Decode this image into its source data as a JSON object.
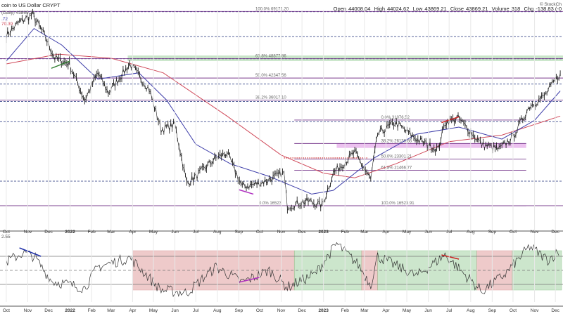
{
  "header": {
    "title": "coin to US Dollar  CRYPT",
    "open_label": "Open",
    "open": "44008.04",
    "high_label": "High",
    "high": "44024.62",
    "low_label": "Low",
    "low": "43869.21",
    "close_label": "Close",
    "close": "43869.21",
    "volume_label": "Volume",
    "volume": "318",
    "chg_label": "Chg",
    "chg": "-138.83 (-0"
  },
  "legend": {
    "price_tag": "(Daily) 43869.21",
    "value_a": ".72",
    "value_b": "70.39"
  },
  "watermark": "© StockCh",
  "rsi_left_label": "2.55",
  "chart_data": {
    "type": "line",
    "title": "Bitcoin to US Dollar CRYPT (Daily)",
    "y_range": [
      14000,
      70000
    ],
    "x_ticks": [
      "Oct",
      "Nov",
      "Dec",
      "2022",
      "Feb",
      "Mar",
      "Apr",
      "May",
      "Jun",
      "Jul",
      "Aug",
      "Sep",
      "Oct",
      "Nov",
      "Dec",
      "2023",
      "Feb",
      "Mar",
      "Apr",
      "May",
      "Jun",
      "Jul",
      "Aug",
      "Sep",
      "Oct",
      "Nov",
      "Dec"
    ],
    "price": [
      {
        "d": "2021-10-01",
        "v": 58000
      },
      {
        "d": "2021-10-20",
        "v": 64000
      },
      {
        "d": "2021-11-08",
        "v": 67500
      },
      {
        "d": "2021-11-25",
        "v": 58000
      },
      {
        "d": "2021-12-10",
        "v": 49000
      },
      {
        "d": "2021-12-31",
        "v": 47000
      },
      {
        "d": "2022-01-22",
        "v": 36000
      },
      {
        "d": "2022-02-10",
        "v": 44000
      },
      {
        "d": "2022-02-25",
        "v": 38000
      },
      {
        "d": "2022-03-28",
        "v": 47000
      },
      {
        "d": "2022-04-25",
        "v": 39000
      },
      {
        "d": "2022-05-12",
        "v": 29000
      },
      {
        "d": "2022-06-01",
        "v": 30000
      },
      {
        "d": "2022-06-18",
        "v": 19500
      },
      {
        "d": "2022-07-01",
        "v": 20500
      },
      {
        "d": "2022-07-30",
        "v": 23500
      },
      {
        "d": "2022-08-15",
        "v": 24400
      },
      {
        "d": "2022-09-06",
        "v": 19000
      },
      {
        "d": "2022-10-01",
        "v": 19500
      },
      {
        "d": "2022-11-05",
        "v": 21000
      },
      {
        "d": "2022-11-10",
        "v": 16500
      },
      {
        "d": "2022-12-10",
        "v": 17100
      },
      {
        "d": "2022-12-30",
        "v": 16550
      },
      {
        "d": "2023-01-15",
        "v": 21000
      },
      {
        "d": "2023-02-15",
        "v": 24500
      },
      {
        "d": "2023-03-10",
        "v": 20000
      },
      {
        "d": "2023-03-20",
        "v": 28000
      },
      {
        "d": "2023-04-14",
        "v": 30500
      },
      {
        "d": "2023-05-15",
        "v": 27000
      },
      {
        "d": "2023-06-15",
        "v": 25000
      },
      {
        "d": "2023-06-25",
        "v": 30500
      },
      {
        "d": "2023-07-14",
        "v": 31500
      },
      {
        "d": "2023-08-17",
        "v": 26000
      },
      {
        "d": "2023-09-11",
        "v": 25000
      },
      {
        "d": "2023-10-01",
        "v": 27500
      },
      {
        "d": "2023-10-25",
        "v": 34500
      },
      {
        "d": "2023-11-15",
        "v": 37000
      },
      {
        "d": "2023-12-08",
        "v": 43869
      }
    ],
    "ma_short": [
      {
        "d": "2021-10-01",
        "v": 48000
      },
      {
        "d": "2021-11-10",
        "v": 61000
      },
      {
        "d": "2021-12-20",
        "v": 54000
      },
      {
        "d": "2022-02-10",
        "v": 42000
      },
      {
        "d": "2022-04-10",
        "v": 44000
      },
      {
        "d": "2022-05-20",
        "v": 36000
      },
      {
        "d": "2022-07-01",
        "v": 26000
      },
      {
        "d": "2022-08-20",
        "v": 22500
      },
      {
        "d": "2022-10-15",
        "v": 20500
      },
      {
        "d": "2022-12-15",
        "v": 18000
      },
      {
        "d": "2023-01-15",
        "v": 18500
      },
      {
        "d": "2023-03-15",
        "v": 23500
      },
      {
        "d": "2023-05-15",
        "v": 28000
      },
      {
        "d": "2023-07-15",
        "v": 29500
      },
      {
        "d": "2023-09-15",
        "v": 27000
      },
      {
        "d": "2023-11-01",
        "v": 31000
      },
      {
        "d": "2023-12-08",
        "v": 38500
      }
    ],
    "ma_long": [
      {
        "d": "2021-10-01",
        "v": 47000
      },
      {
        "d": "2021-12-15",
        "v": 50500
      },
      {
        "d": "2022-03-01",
        "v": 49000
      },
      {
        "d": "2022-05-15",
        "v": 44000
      },
      {
        "d": "2022-08-15",
        "v": 32000
      },
      {
        "d": "2022-11-01",
        "v": 24000
      },
      {
        "d": "2023-01-01",
        "v": 21000
      },
      {
        "d": "2023-02-15",
        "v": 20300
      },
      {
        "d": "2023-04-15",
        "v": 22500
      },
      {
        "d": "2023-07-01",
        "v": 26500
      },
      {
        "d": "2023-09-15",
        "v": 27800
      },
      {
        "d": "2023-12-08",
        "v": 32000
      }
    ],
    "fib_levels_2021": [
      {
        "label": "100.0%  69171.20",
        "v": 69171.2
      },
      {
        "label": "61.8%  48877.86",
        "v": 48877.86
      },
      {
        "label": "50.0%  42347.56",
        "v": 42347.56
      },
      {
        "label": "38.2%  36017.10",
        "v": 36017.1
      },
      {
        "label": "0.0%  16523",
        "v": 16523
      }
    ],
    "fib_levels_2023": [
      {
        "label": "0.0%  31076.52",
        "v": 31076.52
      },
      {
        "label": "38.2%  26136.66",
        "v": 26136.66
      },
      {
        "label": "50.0%  23301.21",
        "v": 23301.21
      },
      {
        "label": "61.8%  21466.77",
        "v": 21466.77
      },
      {
        "label": "100.0%  16523.91",
        "v": 16523.91
      }
    ],
    "rsi": [
      {
        "d": "2021-10-01",
        "v": 62
      },
      {
        "d": "2021-10-25",
        "v": 75
      },
      {
        "d": "2021-11-10",
        "v": 70
      },
      {
        "d": "2021-12-05",
        "v": 35
      },
      {
        "d": "2022-01-22",
        "v": 25
      },
      {
        "d": "2022-02-10",
        "v": 55
      },
      {
        "d": "2022-03-28",
        "v": 68
      },
      {
        "d": "2022-05-12",
        "v": 22
      },
      {
        "d": "2022-06-18",
        "v": 18
      },
      {
        "d": "2022-07-30",
        "v": 55
      },
      {
        "d": "2022-09-06",
        "v": 33
      },
      {
        "d": "2022-10-15",
        "v": 50
      },
      {
        "d": "2022-11-10",
        "v": 26
      },
      {
        "d": "2022-12-20",
        "v": 45
      },
      {
        "d": "2023-01-20",
        "v": 88
      },
      {
        "d": "2023-02-20",
        "v": 58
      },
      {
        "d": "2023-03-10",
        "v": 30
      },
      {
        "d": "2023-03-20",
        "v": 70
      },
      {
        "d": "2023-05-15",
        "v": 42
      },
      {
        "d": "2023-06-25",
        "v": 72
      },
      {
        "d": "2023-08-17",
        "v": 20
      },
      {
        "d": "2023-09-20",
        "v": 45
      },
      {
        "d": "2023-10-25",
        "v": 84
      },
      {
        "d": "2023-11-20",
        "v": 65
      },
      {
        "d": "2023-12-08",
        "v": 78
      }
    ],
    "rsi_levels": [
      70,
      50,
      30
    ],
    "shaded_zones_price": [
      {
        "from": 48000,
        "to": 50000,
        "color": "green"
      },
      {
        "from": 25300,
        "to": 26200,
        "color": "purple"
      }
    ],
    "shaded_zones_rsi": [
      {
        "from": "2022-04-01",
        "to": "2022-11-20",
        "color": "red"
      },
      {
        "from": "2022-11-20",
        "to": "2023-02-25",
        "color": "green"
      },
      {
        "from": "2023-02-25",
        "to": "2023-03-20",
        "color": "red"
      },
      {
        "from": "2023-03-20",
        "to": "2023-08-10",
        "color": "green"
      },
      {
        "from": "2023-08-10",
        "to": "2023-09-30",
        "color": "red"
      },
      {
        "from": "2023-09-30",
        "to": "2023-12-10",
        "color": "green"
      }
    ]
  },
  "colors": {
    "price": "#222222",
    "ma_short": "#3b3ba8",
    "ma_long": "#d04a5a",
    "fib": "#7a3b8e",
    "navy_dash": "#1f2f7a",
    "grid": "#e8e8e8",
    "green_zone": "#b7dcb7",
    "red_zone": "#e8b4b4",
    "purple_zone": "#e9b6ec"
  }
}
